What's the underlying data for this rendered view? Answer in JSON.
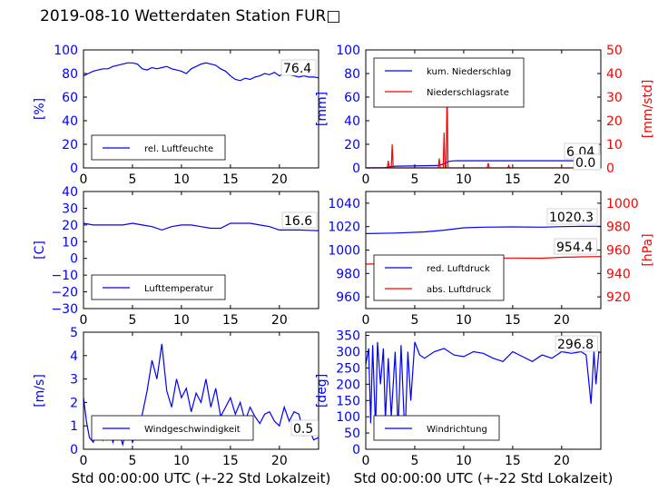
{
  "title": "2019-08-10 Wetterdaten Station FUR□",
  "colors": {
    "left_axis": "#0000ff",
    "right_axis": "#ff0000",
    "frame": "#000000"
  },
  "chart_data": [
    {
      "id": "humidity",
      "type": "line",
      "xlabel": "",
      "ylabel": "[%]",
      "xlim": [
        0,
        24
      ],
      "ylim": [
        0,
        100
      ],
      "xticks": [
        "0",
        "5",
        "10",
        "15",
        "20"
      ],
      "yticks": [
        "0",
        "20",
        "40",
        "60",
        "80",
        "100"
      ],
      "legend": {
        "placement": "lower-left",
        "entries": [
          "rel. Luftfeuchte"
        ]
      },
      "annotations": [
        "76.4"
      ],
      "series": [
        {
          "name": "rel. Luftfeuchte",
          "color": "#0000ff",
          "x": [
            0,
            0.5,
            1,
            1.5,
            2,
            2.5,
            3,
            3.5,
            4,
            4.5,
            5,
            5.5,
            6,
            6.5,
            7,
            7.5,
            8,
            8.5,
            9,
            9.5,
            10,
            10.5,
            11,
            11.5,
            12,
            12.5,
            13,
            13.5,
            14,
            14.5,
            15,
            15.5,
            16,
            16.5,
            17,
            17.5,
            18,
            18.5,
            19,
            19.5,
            20,
            20.5,
            21,
            21.5,
            22,
            22.5,
            23,
            23.5,
            24
          ],
          "values": [
            78,
            80,
            82,
            83,
            84,
            84,
            86,
            87,
            88,
            89,
            89,
            88,
            84,
            83,
            85,
            84,
            85,
            86,
            84,
            83,
            82,
            80,
            84,
            86,
            88,
            89,
            88,
            87,
            84,
            82,
            78,
            75,
            74,
            76,
            75,
            77,
            78,
            80,
            79,
            81,
            78,
            80,
            79,
            78,
            77,
            78,
            77,
            77,
            76.4
          ]
        }
      ]
    },
    {
      "id": "precipitation",
      "type": "line",
      "xlabel": "",
      "ylabel": "[mm]",
      "ylabel_right": "[mm/std]",
      "xlim": [
        0,
        24
      ],
      "ylim": [
        0,
        100
      ],
      "ylim_right": [
        0,
        50
      ],
      "xticks": [
        "0",
        "5",
        "10",
        "15",
        "20"
      ],
      "yticks": [
        "0",
        "20",
        "40",
        "60",
        "80",
        "100"
      ],
      "yticks_right": [
        "0",
        "10",
        "20",
        "30",
        "40",
        "50"
      ],
      "legend": {
        "placement": "top-left",
        "entries": [
          "kum. Niederschlag",
          "Niederschlagsrate"
        ]
      },
      "annotations": [
        "6.04",
        "0.0"
      ],
      "series": [
        {
          "name": "kum. Niederschlag",
          "color": "#0000ff",
          "axis": "left",
          "x": [
            0,
            2,
            2.5,
            3,
            7.5,
            7.8,
            8.2,
            8.5,
            9,
            9.5,
            24
          ],
          "values": [
            0,
            0.2,
            1.0,
            1.5,
            2.0,
            3.0,
            4.5,
            5.5,
            6.0,
            6.04,
            6.04
          ]
        },
        {
          "name": "Niederschlagsrate",
          "color": "#ff0000",
          "axis": "right",
          "x": [
            0,
            2.2,
            2.3,
            2.4,
            2.6,
            2.7,
            2.8,
            7.4,
            7.5,
            7.6,
            7.9,
            8.0,
            8.1,
            8.2,
            8.3,
            8.4,
            8.6,
            12.4,
            12.5,
            12.6,
            14.5,
            14.6,
            14.7,
            24
          ],
          "values": [
            0,
            0,
            3,
            0,
            0,
            10,
            0,
            0,
            4,
            0,
            0,
            15,
            0,
            0,
            34,
            0,
            0,
            0,
            2,
            0,
            0,
            1,
            0,
            0
          ]
        }
      ]
    },
    {
      "id": "temperature",
      "type": "line",
      "xlabel": "",
      "ylabel": "[C]",
      "xlim": [
        0,
        24
      ],
      "ylim": [
        -30,
        40
      ],
      "xticks": [
        "0",
        "5",
        "10",
        "15",
        "20"
      ],
      "yticks": [
        "−30",
        "−20",
        "−10",
        "0",
        "10",
        "20",
        "30",
        "40"
      ],
      "legend": {
        "placement": "lower-left",
        "entries": [
          "Lufttemperatur"
        ]
      },
      "annotations": [
        "16.6"
      ],
      "series": [
        {
          "name": "Lufttemperatur",
          "color": "#0000ff",
          "x": [
            0,
            1,
            2,
            3,
            4,
            5,
            6,
            7,
            8,
            9,
            10,
            11,
            12,
            13,
            14,
            15,
            16,
            17,
            18,
            19,
            20,
            21,
            22,
            23,
            24
          ],
          "values": [
            21,
            20,
            20,
            20,
            20,
            21,
            20,
            19,
            17,
            19,
            20,
            20,
            19,
            18,
            18,
            21,
            21,
            21,
            20,
            19,
            17,
            17,
            17,
            16.8,
            16.6
          ]
        }
      ]
    },
    {
      "id": "pressure",
      "type": "line",
      "xlabel": "",
      "ylabel": "",
      "ylabel_right": "[hPa]",
      "xlim": [
        0,
        24
      ],
      "ylim": [
        950,
        1050
      ],
      "ylim_right": [
        910,
        1010
      ],
      "xticks": [
        "0",
        "5",
        "10",
        "15",
        "20"
      ],
      "yticks": [
        "960",
        "980",
        "1000",
        "1020",
        "1040"
      ],
      "yticks_right": [
        "920",
        "940",
        "960",
        "980",
        "1000"
      ],
      "legend": {
        "placement": "lower-left",
        "entries": [
          "red. Luftdruck",
          "abs. Luftdruck"
        ]
      },
      "annotations": [
        "1020.3",
        "954.4"
      ],
      "series": [
        {
          "name": "red. Luftdruck",
          "color": "#0000ff",
          "axis": "left",
          "x": [
            0,
            3,
            6,
            8,
            10,
            12,
            15,
            18,
            20,
            22,
            24
          ],
          "values": [
            1014,
            1014.5,
            1015.5,
            1017,
            1019,
            1019.5,
            1019.8,
            1019.5,
            1020,
            1020.2,
            1020.3
          ]
        },
        {
          "name": "abs. Luftdruck",
          "color": "#ff0000",
          "axis": "right",
          "x": [
            0,
            3,
            6,
            8,
            10,
            12,
            15,
            18,
            20,
            22,
            24
          ],
          "values": [
            948,
            948.5,
            949.5,
            951,
            952.5,
            953,
            953.2,
            953,
            953.8,
            954.2,
            954.4
          ]
        }
      ]
    },
    {
      "id": "windspeed",
      "type": "line",
      "xlabel": "Std 00:00:00 UTC (+-22 Std Lokalzeit)",
      "ylabel": "[m/s]",
      "xlim": [
        0,
        24
      ],
      "ylim": [
        0,
        5
      ],
      "xticks": [
        "0",
        "5",
        "10",
        "15",
        "20"
      ],
      "yticks": [
        "0",
        "1",
        "2",
        "3",
        "4",
        "5"
      ],
      "legend": {
        "placement": "lower-left",
        "entries": [
          "Windgeschwindigkeit"
        ]
      },
      "annotations": [
        "0.5"
      ],
      "series": [
        {
          "name": "Windgeschwindigkeit",
          "color": "#0000ff",
          "x": [
            0,
            0.3,
            0.6,
            1,
            1.5,
            2,
            2.5,
            3,
            3.5,
            4,
            4.5,
            5,
            5.5,
            6,
            6.5,
            7,
            7.5,
            8,
            8.5,
            9,
            9.5,
            10,
            10.5,
            11,
            11.5,
            12,
            12.5,
            13,
            13.5,
            14,
            14.5,
            15,
            15.5,
            16,
            16.5,
            17,
            17.5,
            18,
            18.5,
            19,
            19.5,
            20,
            20.5,
            21,
            21.5,
            22,
            22.5,
            23,
            23.5,
            24
          ],
          "values": [
            2.2,
            1.2,
            0.5,
            0.3,
            1.0,
            0.4,
            1.2,
            0.3,
            0.9,
            0.2,
            1.1,
            0.3,
            0.8,
            1.5,
            2.5,
            3.8,
            3.0,
            4.5,
            2.5,
            1.8,
            3.0,
            2.2,
            2.6,
            1.6,
            2.4,
            2.0,
            3.0,
            1.8,
            2.6,
            1.4,
            1.8,
            2.2,
            1.5,
            2.0,
            1.2,
            1.8,
            1.4,
            1.1,
            1.5,
            1.6,
            1.2,
            1.0,
            1.8,
            1.2,
            1.6,
            1.5,
            0.6,
            0.9,
            0.4,
            0.5
          ]
        }
      ]
    },
    {
      "id": "winddirection",
      "type": "line",
      "xlabel": "Std 00:00:00 UTC (+-22 Std Lokalzeit)",
      "ylabel": "[deg]",
      "xlim": [
        0,
        24
      ],
      "ylim": [
        0,
        360
      ],
      "xticks": [
        "0",
        "5",
        "10",
        "15",
        "20"
      ],
      "yticks": [
        "0",
        "50",
        "100",
        "150",
        "200",
        "250",
        "300",
        "350"
      ],
      "legend": {
        "placement": "lower-left",
        "entries": [
          "Windrichtung"
        ]
      },
      "annotations": [
        "296.8"
      ],
      "series": [
        {
          "name": "Windrichtung",
          "color": "#0000ff",
          "x": [
            0,
            0.3,
            0.5,
            0.7,
            1,
            1.2,
            1.5,
            1.8,
            2,
            2.3,
            2.6,
            3,
            3.3,
            3.6,
            4,
            4.3,
            4.6,
            5,
            5.5,
            6,
            7,
            8,
            9,
            10,
            11,
            12,
            13,
            14,
            15,
            16,
            17,
            18,
            19,
            20,
            21,
            22,
            22.5,
            23,
            23.3,
            23.5,
            23.8,
            24
          ],
          "values": [
            260,
            310,
            80,
            320,
            60,
            330,
            200,
            310,
            90,
            280,
            100,
            300,
            60,
            320,
            30,
            300,
            150,
            330,
            290,
            280,
            300,
            310,
            290,
            285,
            300,
            295,
            280,
            270,
            300,
            285,
            270,
            290,
            280,
            300,
            295,
            300,
            290,
            140,
            300,
            200,
            300,
            296.8
          ]
        }
      ]
    }
  ]
}
